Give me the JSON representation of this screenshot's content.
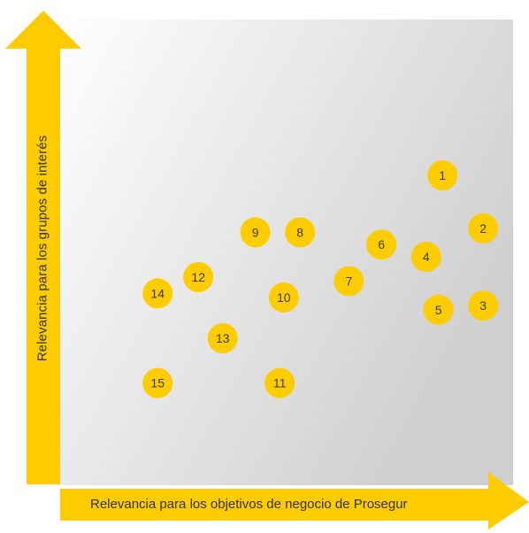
{
  "chart_data": {
    "type": "scatter",
    "xlabel": "Relevancia para los objetivos de negocio de Prosegur",
    "ylabel": "Relevancia para los grupos de interés",
    "marker_color": "#FFCC00",
    "axis_color": "#FFCC00",
    "background_gradient": [
      "#ffffff",
      "#cfcfcf"
    ],
    "grid": false,
    "legend": "none",
    "xlim": [
      0,
      100
    ],
    "ylim": [
      0,
      100
    ],
    "points": [
      {
        "label": "1",
        "x": 87,
        "y": 70
      },
      {
        "label": "2",
        "x": 97,
        "y": 57
      },
      {
        "label": "3",
        "x": 97,
        "y": 38
      },
      {
        "label": "4",
        "x": 83,
        "y": 50
      },
      {
        "label": "5",
        "x": 86,
        "y": 37
      },
      {
        "label": "6",
        "x": 72,
        "y": 53
      },
      {
        "label": "7",
        "x": 64,
        "y": 44
      },
      {
        "label": "8",
        "x": 52,
        "y": 56
      },
      {
        "label": "9",
        "x": 41,
        "y": 56
      },
      {
        "label": "10",
        "x": 48,
        "y": 40
      },
      {
        "label": "11",
        "x": 47,
        "y": 19
      },
      {
        "label": "12",
        "x": 27,
        "y": 45
      },
      {
        "label": "13",
        "x": 33,
        "y": 30
      },
      {
        "label": "14",
        "x": 17,
        "y": 41
      },
      {
        "label": "15",
        "x": 17,
        "y": 19
      }
    ]
  }
}
